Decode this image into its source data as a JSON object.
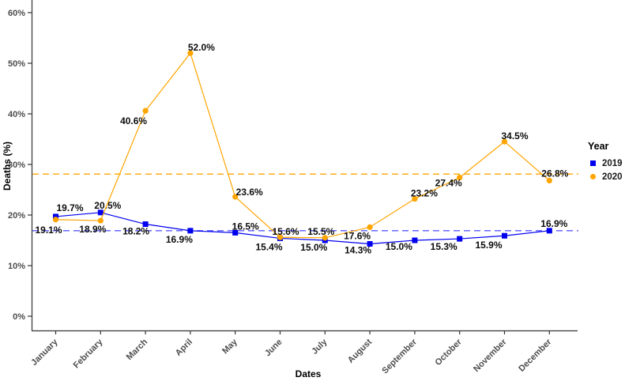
{
  "chart_data": {
    "type": "line",
    "title": "",
    "xlabel": "Dates",
    "ylabel": "Deaths (%)",
    "categories": [
      "January",
      "February",
      "March",
      "April",
      "May",
      "June",
      "July",
      "August",
      "September",
      "October",
      "November",
      "December"
    ],
    "y_ticks": [
      {
        "value": 0,
        "label": "0%"
      },
      {
        "value": 10,
        "label": "10%"
      },
      {
        "value": 20,
        "label": "20%"
      },
      {
        "value": 30,
        "label": "30%"
      },
      {
        "value": 40,
        "label": "40%"
      },
      {
        "value": 50,
        "label": "50%"
      },
      {
        "value": 60,
        "label": "60%"
      }
    ],
    "ylim": [
      0,
      62
    ],
    "grid": "off",
    "axis_color": "#333333",
    "tick_text_color": "#4d4d4d",
    "legend": {
      "title": "Year",
      "position": "right"
    },
    "series": [
      {
        "name": "2019",
        "color": "#0000EE",
        "marker": "square",
        "values": [
          19.7,
          20.5,
          18.2,
          16.9,
          16.5,
          15.4,
          15.0,
          14.3,
          15.0,
          15.3,
          15.9,
          16.9
        ],
        "point_labels": [
          "19.7%",
          "20.5%",
          "18.2%",
          "16.9%",
          "16.5%",
          "15.4%",
          "15.0%",
          "14.3%",
          "15.0%",
          "15.3%",
          "15.9%",
          "16.9%"
        ],
        "label_offsets": [
          [
            18,
            -11
          ],
          [
            9,
            -9
          ],
          [
            -12,
            9
          ],
          [
            -14,
            11
          ],
          [
            13,
            -8
          ],
          [
            -14,
            11
          ],
          [
            -14,
            9
          ],
          [
            -15,
            8
          ],
          [
            -20,
            8
          ],
          [
            -20,
            10
          ],
          [
            -20,
            12
          ],
          [
            6,
            -9
          ]
        ],
        "mean_line": {
          "value": 16.9,
          "color": "#5A5AFF",
          "style": "dashed"
        }
      },
      {
        "name": "2020",
        "color": "#FFA500",
        "marker": "circle",
        "values": [
          19.1,
          18.9,
          40.6,
          52.0,
          23.6,
          15.6,
          15.5,
          17.6,
          23.2,
          27.4,
          34.5,
          26.8
        ],
        "point_labels": [
          "19.1%",
          "18.9%",
          "40.6%",
          "52.0%",
          "23.6%",
          "15.6%",
          "15.5%",
          "17.6%",
          "23.2%",
          "27.4%",
          "34.5%",
          "26.8%"
        ],
        "label_offsets": [
          [
            -9,
            13
          ],
          [
            -10,
            11
          ],
          [
            -15,
            13
          ],
          [
            14,
            -7
          ],
          [
            18,
            -6
          ],
          [
            7,
            -7
          ],
          [
            -5,
            -8
          ],
          [
            -16,
            11
          ],
          [
            12,
            -7
          ],
          [
            -14,
            7
          ],
          [
            13,
            -7
          ],
          [
            7,
            -9
          ]
        ],
        "mean_line": {
          "value": 28.1,
          "color": "#FFA500",
          "style": "dashed"
        }
      }
    ]
  }
}
